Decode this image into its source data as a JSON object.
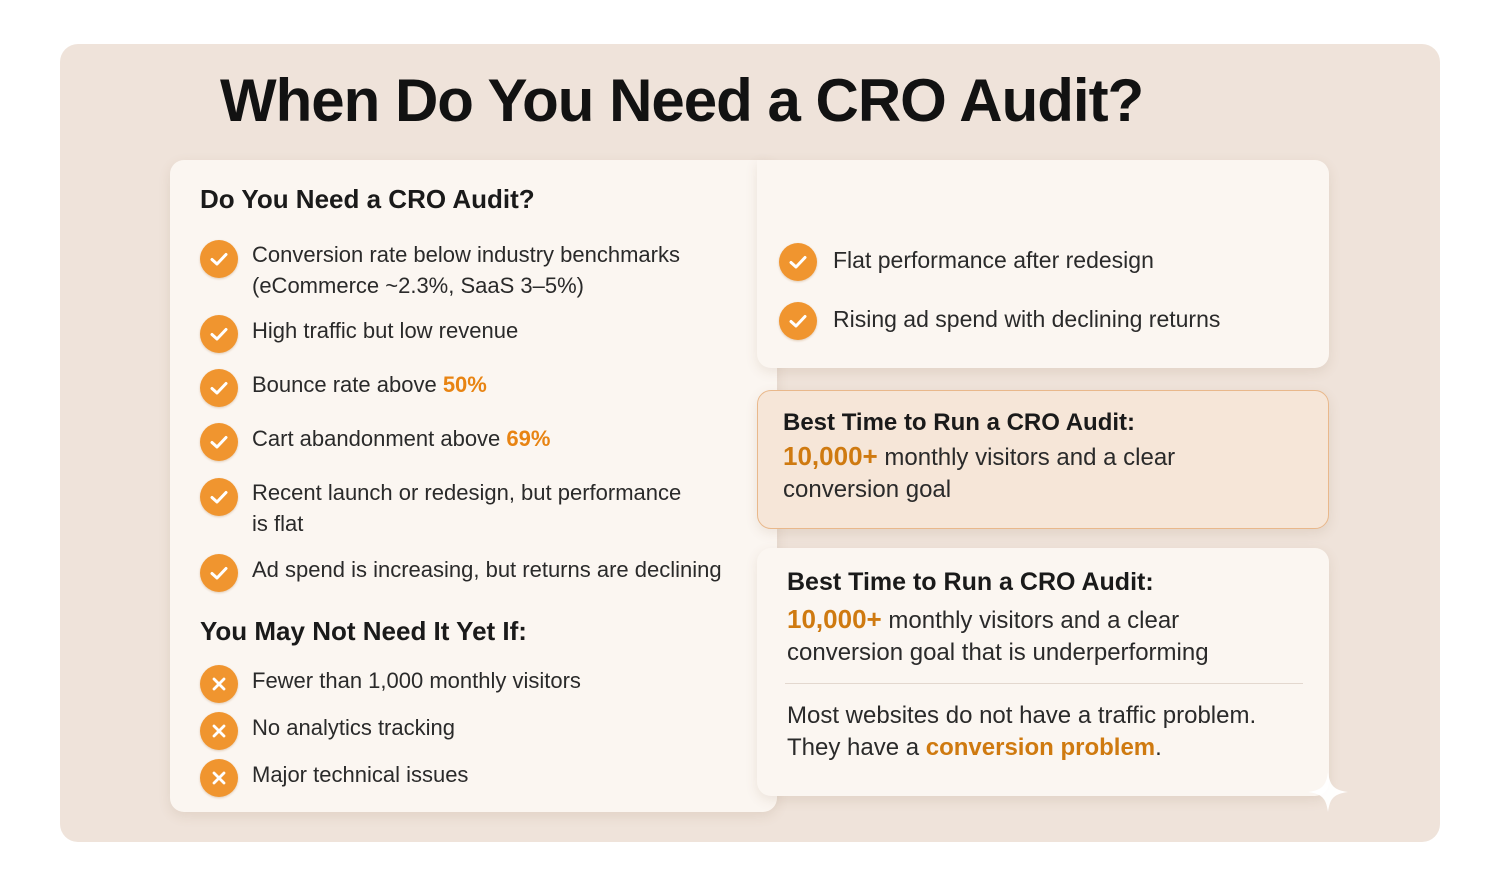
{
  "title": "When Do You Need a CRO Audit?",
  "need_section": {
    "heading": "Do You Need a CRO Audit?",
    "items": [
      {
        "line1": "Conversion rate below industry benchmarks",
        "line2": "(eCommerce ~2.3%, SaaS 3–5%)"
      },
      {
        "text": "High traffic but low revenue"
      },
      {
        "text": "Bounce rate above ",
        "highlight": "50%"
      },
      {
        "text": "Cart abandonment above ",
        "highlight": "69%"
      },
      {
        "line1": "Recent launch or redesign, but performance",
        "line2": "is flat"
      },
      {
        "text": "Ad spend is increasing, but returns are declining"
      }
    ]
  },
  "right_items": [
    "Flat performance after redesign",
    "Rising ad spend with declining returns"
  ],
  "not_need_section": {
    "heading": "You May Not Need It Yet If:",
    "items": [
      "Fewer than 1,000 monthly visitors",
      "No analytics tracking",
      "Major technical issues"
    ]
  },
  "best_time_box": {
    "title": "Best Time to Run a CRO Audit:",
    "highlight": "10,000+",
    "text_line1": " monthly visitors and a clear",
    "text_line2": "conversion goal"
  },
  "bottom_box": {
    "title": "Best Time to Run a CRO Audit:",
    "highlight": "10,000+",
    "text_line1": " monthly visitors and a clear",
    "text_line2": "conversion goal that is underperforming",
    "quote_line1": "Most websites do not have a traffic problem.",
    "quote_line2_prefix": "They have a ",
    "quote_highlight": "conversion problem",
    "quote_suffix": "."
  },
  "colors": {
    "accent": "#f0952f",
    "highlight_text": "#e88413",
    "background": "#efe3da",
    "card": "#fbf6f1",
    "best_box": "#f6e6d8"
  },
  "icons": {
    "positive": "check-icon",
    "negative": "x-icon",
    "decor": "sparkle-icon"
  }
}
